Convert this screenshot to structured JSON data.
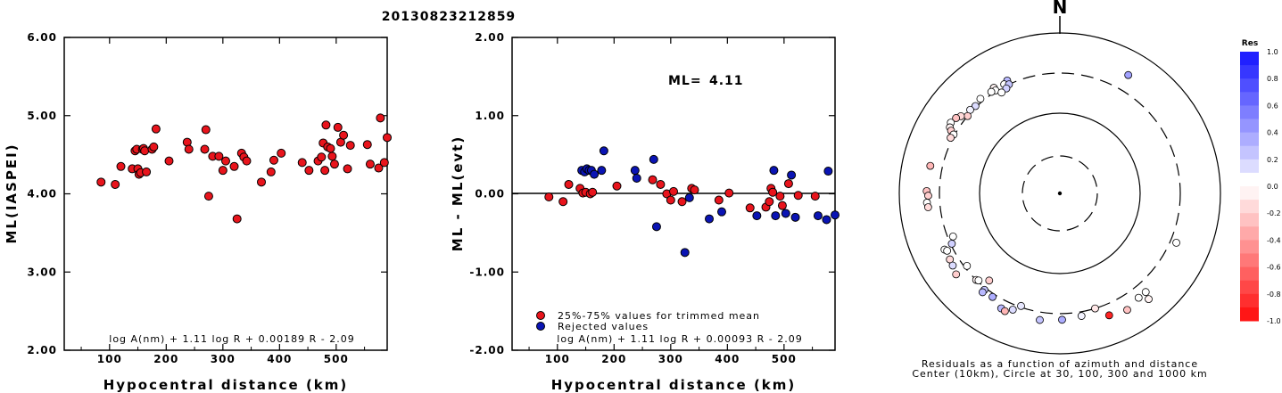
{
  "figure_title": "20130823212859",
  "chart_data": [
    {
      "type": "scatter",
      "title": "",
      "xlabel": "Hypocentral distance (km)",
      "ylabel": "ML(IASPEI)",
      "xlim": [
        20,
        590
      ],
      "ylim": [
        2.0,
        6.0
      ],
      "x_ticks": [
        "100",
        "200",
        "300",
        "400",
        "500"
      ],
      "y_ticks": [
        "2.00",
        "3.00",
        "4.00",
        "5.00",
        "6.00"
      ],
      "formula": "log A(nm) + 1.11 log R + 0.00189 R - 2.09",
      "marker_color": "#e8141c",
      "points": [
        [
          85,
          4.15
        ],
        [
          110,
          4.12
        ],
        [
          120,
          4.35
        ],
        [
          140,
          4.32
        ],
        [
          145,
          4.55
        ],
        [
          148,
          4.57
        ],
        [
          150,
          4.32
        ],
        [
          152,
          4.25
        ],
        [
          155,
          4.27
        ],
        [
          158,
          4.57
        ],
        [
          160,
          4.58
        ],
        [
          162,
          4.55
        ],
        [
          165,
          4.28
        ],
        [
          175,
          4.57
        ],
        [
          178,
          4.6
        ],
        [
          182,
          4.83
        ],
        [
          205,
          4.42
        ],
        [
          237,
          4.66
        ],
        [
          240,
          4.57
        ],
        [
          268,
          4.57
        ],
        [
          270,
          4.82
        ],
        [
          275,
          3.97
        ],
        [
          282,
          4.48
        ],
        [
          293,
          4.48
        ],
        [
          300,
          4.3
        ],
        [
          305,
          4.42
        ],
        [
          320,
          4.35
        ],
        [
          325,
          3.68
        ],
        [
          333,
          4.52
        ],
        [
          337,
          4.47
        ],
        [
          342,
          4.42
        ],
        [
          368,
          4.15
        ],
        [
          385,
          4.28
        ],
        [
          390,
          4.43
        ],
        [
          403,
          4.52
        ],
        [
          440,
          4.4
        ],
        [
          452,
          4.3
        ],
        [
          468,
          4.42
        ],
        [
          474,
          4.47
        ],
        [
          477,
          4.65
        ],
        [
          480,
          4.3
        ],
        [
          482,
          4.88
        ],
        [
          485,
          4.6
        ],
        [
          490,
          4.58
        ],
        [
          493,
          4.48
        ],
        [
          497,
          4.38
        ],
        [
          503,
          4.85
        ],
        [
          508,
          4.66
        ],
        [
          513,
          4.75
        ],
        [
          520,
          4.32
        ],
        [
          525,
          4.62
        ],
        [
          555,
          4.63
        ],
        [
          560,
          4.38
        ],
        [
          575,
          4.33
        ],
        [
          578,
          4.97
        ],
        [
          585,
          4.4
        ],
        [
          590,
          4.72
        ]
      ]
    },
    {
      "type": "scatter",
      "title": "",
      "xlabel": "Hypocentral distance (km)",
      "ylabel": "ML - ML(evt)",
      "xlim": [
        20,
        590
      ],
      "ylim": [
        -2.0,
        2.0
      ],
      "x_ticks": [
        "100",
        "200",
        "300",
        "400",
        "500"
      ],
      "y_ticks": [
        "-2.00",
        "-1.00",
        "0.00",
        "1.00",
        "2.00"
      ],
      "annotation_label": "ML=",
      "annotation_value": "4.11",
      "formula": "log A(nm) + 1.11 log R + 0.00093 R - 2.09",
      "legend": [
        {
          "label": "25%-75% values for trimmed mean",
          "color": "#e8141c"
        },
        {
          "label": "Rejected values",
          "color": "#0a14b4"
        }
      ],
      "series": [
        {
          "name": "25%-75% values for trimmed mean",
          "color": "#e8141c",
          "points": [
            [
              85,
              -0.04
            ],
            [
              110,
              -0.1
            ],
            [
              120,
              0.12
            ],
            [
              140,
              0.07
            ],
            [
              145,
              0.01
            ],
            [
              150,
              0.02
            ],
            [
              158,
              0.0
            ],
            [
              162,
              0.02
            ],
            [
              205,
              0.1
            ],
            [
              268,
              0.18
            ],
            [
              282,
              0.12
            ],
            [
              293,
              0.0
            ],
            [
              300,
              -0.08
            ],
            [
              305,
              0.03
            ],
            [
              320,
              -0.1
            ],
            [
              337,
              0.07
            ],
            [
              342,
              0.05
            ],
            [
              385,
              -0.08
            ],
            [
              403,
              0.01
            ],
            [
              440,
              -0.18
            ],
            [
              468,
              -0.17
            ],
            [
              474,
              -0.1
            ],
            [
              477,
              0.07
            ],
            [
              480,
              0.02
            ],
            [
              493,
              -0.03
            ],
            [
              497,
              -0.15
            ],
            [
              508,
              0.13
            ],
            [
              525,
              -0.02
            ],
            [
              555,
              -0.03
            ]
          ]
        },
        {
          "name": "Rejected values",
          "color": "#0a14b4",
          "points": [
            [
              143,
              0.3
            ],
            [
              148,
              0.28
            ],
            [
              152,
              0.32
            ],
            [
              156,
              0.3
            ],
            [
              160,
              0.3
            ],
            [
              165,
              0.25
            ],
            [
              178,
              0.3
            ],
            [
              182,
              0.55
            ],
            [
              237,
              0.3
            ],
            [
              240,
              0.2
            ],
            [
              270,
              0.44
            ],
            [
              275,
              -0.42
            ],
            [
              325,
              -0.75
            ],
            [
              333,
              -0.05
            ],
            [
              368,
              -0.32
            ],
            [
              390,
              -0.23
            ],
            [
              452,
              -0.28
            ],
            [
              482,
              0.3
            ],
            [
              485,
              -0.28
            ],
            [
              503,
              -0.25
            ],
            [
              513,
              0.24
            ],
            [
              520,
              -0.3
            ],
            [
              560,
              -0.28
            ],
            [
              575,
              -0.33
            ],
            [
              578,
              0.29
            ],
            [
              590,
              -0.27
            ]
          ]
        }
      ]
    },
    {
      "type": "scatter",
      "title": "",
      "north_label": "N",
      "caption_line1": "Residuals as a function of azimuth and distance",
      "caption_line2": "Center (10km), Circle at 30, 100, 300 and 1000 km",
      "colorbar_title": "Res",
      "colorbar_ticks": [
        "1.0",
        "0.8",
        "0.6",
        "0.4",
        "0.2",
        "0.0",
        "-0.2",
        "-0.4",
        "-0.6",
        "-0.8",
        "-1.0"
      ],
      "colorbar_range": [
        -1.0,
        1.0
      ],
      "rings_km": [
        30,
        100,
        300,
        1000
      ],
      "points_azimuth_deg_distance_km_residual": [
        [
          328,
          340,
          -0.05
        ],
        [
          335,
          340,
          0.3
        ],
        [
          333,
          320,
          0.02
        ],
        [
          328,
          310,
          0.0
        ],
        [
          326,
          320,
          0.0
        ],
        [
          335,
          300,
          0.25
        ],
        [
          333,
          280,
          0.2
        ],
        [
          330,
          270,
          -0.02
        ],
        [
          320,
          330,
          -0.02
        ],
        [
          316,
          310,
          0.15
        ],
        [
          313,
          320,
          0.05
        ],
        [
          310,
          300,
          -0.2
        ],
        [
          308,
          350,
          -0.15
        ],
        [
          306,
          380,
          -0.25
        ],
        [
          303,
          400,
          0.0
        ],
        [
          301,
          380,
          -0.05
        ],
        [
          300,
          350,
          -0.2
        ],
        [
          299,
          310,
          0.0
        ],
        [
          297,
          320,
          -0.15
        ],
        [
          282,
          430,
          -0.3
        ],
        [
          271,
          440,
          -0.25
        ],
        [
          269,
          420,
          -0.2
        ],
        [
          266,
          440,
          0.0
        ],
        [
          264,
          430,
          -0.15
        ],
        [
          248,
          260,
          0.0
        ],
        [
          245,
          290,
          0.2
        ],
        [
          239,
          380,
          -0.15
        ],
        [
          236,
          390,
          0.15
        ],
        [
          232,
          420,
          -0.2
        ],
        [
          244,
          380,
          0.0
        ],
        [
          243,
          360,
          0.0
        ],
        [
          232,
          280,
          0.0
        ],
        [
          224,
          300,
          -0.05
        ],
        [
          218,
          320,
          0.25
        ],
        [
          218,
          350,
          0.3
        ],
        [
          213,
          330,
          0.35
        ],
        [
          207,
          390,
          0.3
        ],
        [
          219,
          240,
          -0.2
        ],
        [
          223,
          290,
          0.0
        ],
        [
          205,
          400,
          -0.3
        ],
        [
          202,
          350,
          0.15
        ],
        [
          199,
          290,
          0.1
        ],
        [
          189,
          380,
          0.25
        ],
        [
          179,
          360,
          0.35
        ],
        [
          170,
          340,
          0.05
        ],
        [
          163,
          300,
          -0.1
        ],
        [
          143,
          410,
          0.0
        ],
        [
          139,
          410,
          0.0
        ],
        [
          150,
          460,
          -0.25
        ],
        [
          140,
          510,
          -0.05
        ],
        [
          113,
          360,
          0.0
        ],
        [
          30,
          490,
          0.4
        ],
        [
          158,
          420,
          -0.9
        ]
      ]
    }
  ]
}
